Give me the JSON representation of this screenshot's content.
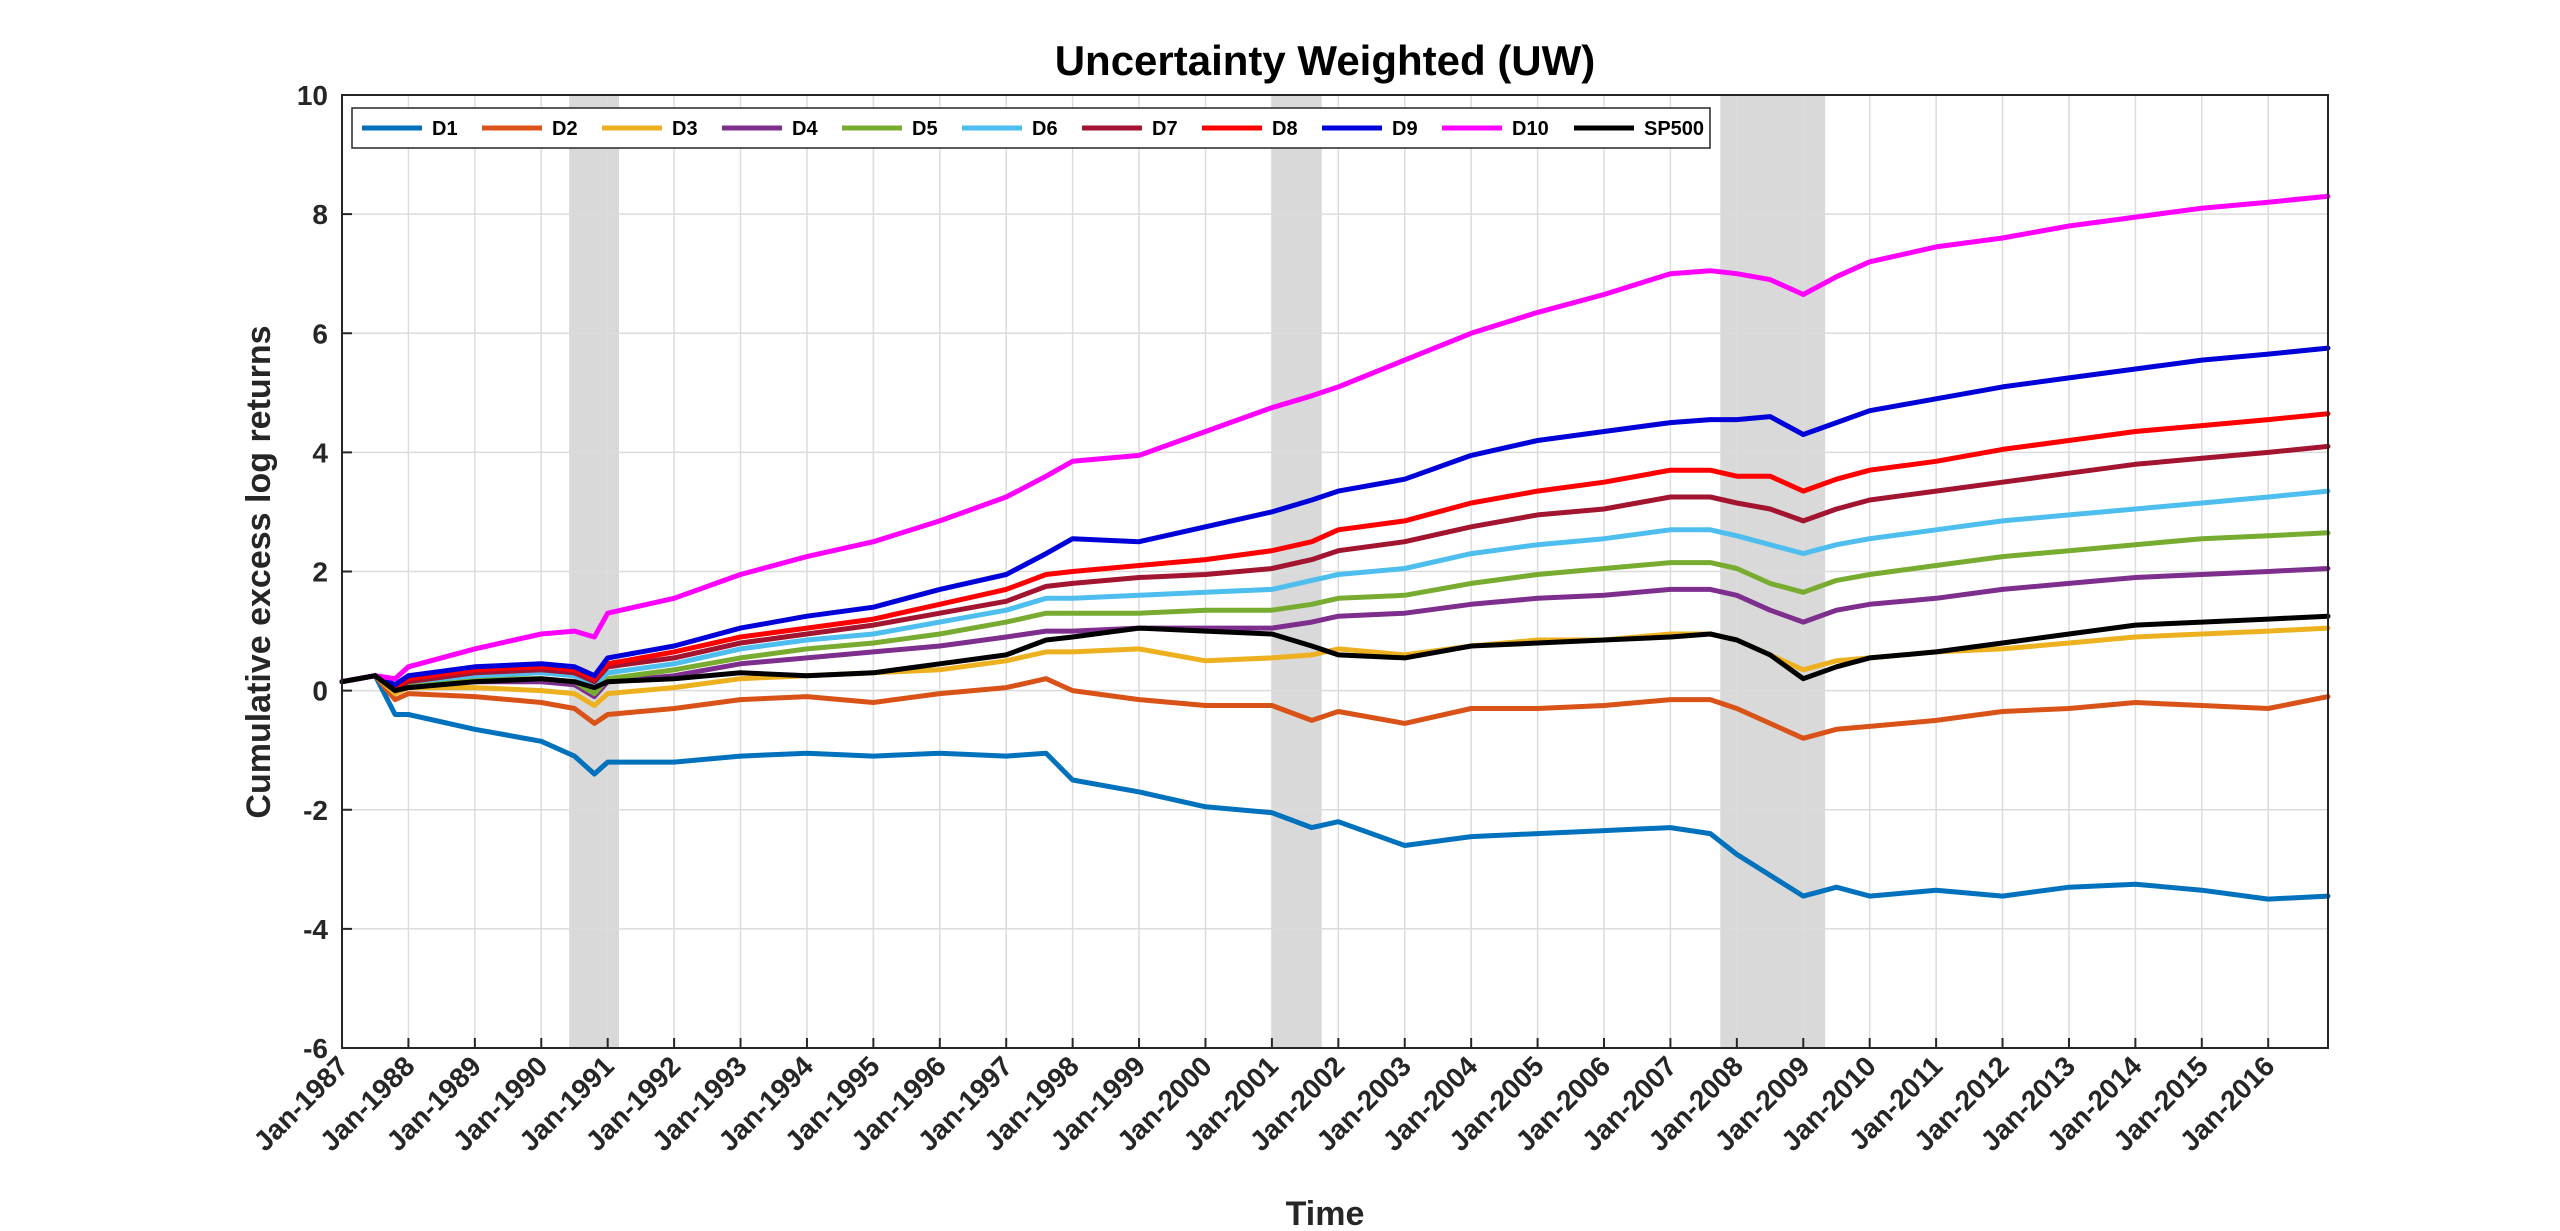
{
  "chart_data": {
    "type": "line",
    "title": "Uncertainty Weighted (UW)",
    "xlabel": "Time",
    "ylabel": "Cumulative excess log returns",
    "ylim": [
      -6,
      10
    ],
    "xlim": [
      1987.0,
      2016.9
    ],
    "yticks": [
      -6,
      -4,
      -2,
      0,
      2,
      4,
      6,
      8,
      10
    ],
    "xticks": [
      {
        "label": "Jan-1987",
        "x": 1987.0
      },
      {
        "label": "Jan-1988",
        "x": 1988.0
      },
      {
        "label": "Jan-1989",
        "x": 1989.0
      },
      {
        "label": "Jan-1990",
        "x": 1990.0
      },
      {
        "label": "Jan-1991",
        "x": 1991.0
      },
      {
        "label": "Jan-1992",
        "x": 1992.0
      },
      {
        "label": "Jan-1993",
        "x": 1993.0
      },
      {
        "label": "Jan-1994",
        "x": 1994.0
      },
      {
        "label": "Jan-1995",
        "x": 1995.0
      },
      {
        "label": "Jan-1996",
        "x": 1996.0
      },
      {
        "label": "Jan-1997",
        "x": 1997.0
      },
      {
        "label": "Jan-1998",
        "x": 1998.0
      },
      {
        "label": "Jan-1999",
        "x": 1999.0
      },
      {
        "label": "Jan-2000",
        "x": 2000.0
      },
      {
        "label": "Jan-2001",
        "x": 2001.0
      },
      {
        "label": "Jan-2002",
        "x": 2002.0
      },
      {
        "label": "Jan-2003",
        "x": 2003.0
      },
      {
        "label": "Jan-2004",
        "x": 2004.0
      },
      {
        "label": "Jan-2005",
        "x": 2005.0
      },
      {
        "label": "Jan-2006",
        "x": 2006.0
      },
      {
        "label": "Jan-2007",
        "x": 2007.0
      },
      {
        "label": "Jan-2008",
        "x": 2008.0
      },
      {
        "label": "Jan-2009",
        "x": 2009.0
      },
      {
        "label": "Jan-2010",
        "x": 2010.0
      },
      {
        "label": "Jan-2011",
        "x": 2011.0
      },
      {
        "label": "Jan-2012",
        "x": 2012.0
      },
      {
        "label": "Jan-2013",
        "x": 2013.0
      },
      {
        "label": "Jan-2014",
        "x": 2014.0
      },
      {
        "label": "Jan-2015",
        "x": 2015.0
      },
      {
        "label": "Jan-2016",
        "x": 2016.0
      }
    ],
    "grid": true,
    "legend_position": "top-left",
    "recession_shading": [
      {
        "start": 1990.42,
        "end": 1991.17
      },
      {
        "start": 2001.0,
        "end": 2001.75
      },
      {
        "start": 2007.75,
        "end": 2009.33
      }
    ],
    "shade_color": "#d9d9d9",
    "x": [
      1987.0,
      1987.5,
      1987.8,
      1988.0,
      1989.0,
      1990.0,
      1990.5,
      1990.8,
      1991.0,
      1992.0,
      1993.0,
      1994.0,
      1995.0,
      1996.0,
      1997.0,
      1997.6,
      1998.0,
      1999.0,
      2000.0,
      2001.0,
      2001.6,
      2002.0,
      2003.0,
      2004.0,
      2005.0,
      2006.0,
      2007.0,
      2007.6,
      2008.0,
      2008.5,
      2009.0,
      2009.5,
      2010.0,
      2011.0,
      2012.0,
      2013.0,
      2014.0,
      2015.0,
      2016.0,
      2016.9
    ],
    "series": [
      {
        "name": "D1",
        "color": "#0072bd",
        "values": [
          0.15,
          0.25,
          -0.4,
          -0.4,
          -0.65,
          -0.85,
          -1.1,
          -1.4,
          -1.2,
          -1.2,
          -1.1,
          -1.05,
          -1.1,
          -1.05,
          -1.1,
          -1.05,
          -1.5,
          -1.7,
          -1.95,
          -2.05,
          -2.3,
          -2.2,
          -2.6,
          -2.45,
          -2.4,
          -2.35,
          -2.3,
          -2.4,
          -2.75,
          -3.1,
          -3.45,
          -3.3,
          -3.45,
          -3.35,
          -3.45,
          -3.3,
          -3.25,
          -3.35,
          -3.5,
          -3.45
        ]
      },
      {
        "name": "D2",
        "color": "#d95319",
        "values": [
          0.15,
          0.25,
          -0.15,
          -0.05,
          -0.1,
          -0.2,
          -0.3,
          -0.55,
          -0.4,
          -0.3,
          -0.15,
          -0.1,
          -0.2,
          -0.05,
          0.05,
          0.2,
          0.0,
          -0.15,
          -0.25,
          -0.25,
          -0.5,
          -0.35,
          -0.55,
          -0.3,
          -0.3,
          -0.25,
          -0.15,
          -0.15,
          -0.3,
          -0.55,
          -0.8,
          -0.65,
          -0.6,
          -0.5,
          -0.35,
          -0.3,
          -0.2,
          -0.25,
          -0.3,
          -0.1
        ]
      },
      {
        "name": "D3",
        "color": "#edb120",
        "values": [
          0.15,
          0.25,
          -0.05,
          0.05,
          0.05,
          0.0,
          -0.05,
          -0.25,
          -0.05,
          0.05,
          0.2,
          0.25,
          0.3,
          0.35,
          0.5,
          0.65,
          0.65,
          0.7,
          0.5,
          0.55,
          0.6,
          0.7,
          0.6,
          0.75,
          0.85,
          0.85,
          0.95,
          0.95,
          0.85,
          0.6,
          0.35,
          0.5,
          0.55,
          0.65,
          0.7,
          0.8,
          0.9,
          0.95,
          1.0,
          1.05
        ]
      },
      {
        "name": "D4",
        "color": "#7e2f8e",
        "values": [
          0.15,
          0.25,
          0.0,
          0.1,
          0.15,
          0.15,
          0.1,
          -0.1,
          0.15,
          0.25,
          0.45,
          0.55,
          0.65,
          0.75,
          0.9,
          1.0,
          1.0,
          1.05,
          1.05,
          1.05,
          1.15,
          1.25,
          1.3,
          1.45,
          1.55,
          1.6,
          1.7,
          1.7,
          1.6,
          1.35,
          1.15,
          1.35,
          1.45,
          1.55,
          1.7,
          1.8,
          1.9,
          1.95,
          2.0,
          2.05
        ]
      },
      {
        "name": "D5",
        "color": "#77ac30",
        "values": [
          0.15,
          0.25,
          0.0,
          0.1,
          0.2,
          0.2,
          0.15,
          -0.05,
          0.2,
          0.35,
          0.55,
          0.7,
          0.8,
          0.95,
          1.15,
          1.3,
          1.3,
          1.3,
          1.35,
          1.35,
          1.45,
          1.55,
          1.6,
          1.8,
          1.95,
          2.05,
          2.15,
          2.15,
          2.05,
          1.8,
          1.65,
          1.85,
          1.95,
          2.1,
          2.25,
          2.35,
          2.45,
          2.55,
          2.6,
          2.65
        ]
      },
      {
        "name": "D6",
        "color": "#4dbeee",
        "values": [
          0.15,
          0.25,
          0.05,
          0.15,
          0.25,
          0.3,
          0.25,
          0.1,
          0.3,
          0.45,
          0.7,
          0.85,
          0.95,
          1.15,
          1.35,
          1.55,
          1.55,
          1.6,
          1.65,
          1.7,
          1.85,
          1.95,
          2.05,
          2.3,
          2.45,
          2.55,
          2.7,
          2.7,
          2.6,
          2.45,
          2.3,
          2.45,
          2.55,
          2.7,
          2.85,
          2.95,
          3.05,
          3.15,
          3.25,
          3.35
        ]
      },
      {
        "name": "D7",
        "color": "#a2142f",
        "values": [
          0.15,
          0.25,
          0.05,
          0.15,
          0.3,
          0.35,
          0.3,
          0.15,
          0.4,
          0.55,
          0.8,
          0.95,
          1.1,
          1.3,
          1.5,
          1.75,
          1.8,
          1.9,
          1.95,
          2.05,
          2.2,
          2.35,
          2.5,
          2.75,
          2.95,
          3.05,
          3.25,
          3.25,
          3.15,
          3.05,
          2.85,
          3.05,
          3.2,
          3.35,
          3.5,
          3.65,
          3.8,
          3.9,
          4.0,
          4.1
        ]
      },
      {
        "name": "D8",
        "color": "#ff0000",
        "values": [
          0.15,
          0.25,
          0.05,
          0.2,
          0.35,
          0.4,
          0.35,
          0.2,
          0.45,
          0.65,
          0.9,
          1.05,
          1.2,
          1.45,
          1.7,
          1.95,
          2.0,
          2.1,
          2.2,
          2.35,
          2.5,
          2.7,
          2.85,
          3.15,
          3.35,
          3.5,
          3.7,
          3.7,
          3.6,
          3.6,
          3.35,
          3.55,
          3.7,
          3.85,
          4.05,
          4.2,
          4.35,
          4.45,
          4.55,
          4.65
        ]
      },
      {
        "name": "D9",
        "color": "#0000d9",
        "values": [
          0.15,
          0.25,
          0.1,
          0.25,
          0.4,
          0.45,
          0.4,
          0.25,
          0.55,
          0.75,
          1.05,
          1.25,
          1.4,
          1.7,
          1.95,
          2.3,
          2.55,
          2.5,
          2.75,
          3.0,
          3.2,
          3.35,
          3.55,
          3.95,
          4.2,
          4.35,
          4.5,
          4.55,
          4.55,
          4.6,
          4.3,
          4.5,
          4.7,
          4.9,
          5.1,
          5.25,
          5.4,
          5.55,
          5.65,
          5.75
        ]
      },
      {
        "name": "D10",
        "color": "#ff00ff",
        "values": [
          0.15,
          0.25,
          0.2,
          0.4,
          0.7,
          0.95,
          1.0,
          0.9,
          1.3,
          1.55,
          1.95,
          2.25,
          2.5,
          2.85,
          3.25,
          3.6,
          3.85,
          3.95,
          4.35,
          4.75,
          4.95,
          5.1,
          5.55,
          6.0,
          6.35,
          6.65,
          7.0,
          7.05,
          7.0,
          6.9,
          6.65,
          6.95,
          7.2,
          7.45,
          7.6,
          7.8,
          7.95,
          8.1,
          8.2,
          8.3
        ]
      },
      {
        "name": "SP500",
        "color": "#000000",
        "values": [
          0.15,
          0.25,
          0.0,
          0.05,
          0.15,
          0.2,
          0.15,
          0.05,
          0.15,
          0.2,
          0.3,
          0.25,
          0.3,
          0.45,
          0.6,
          0.85,
          0.9,
          1.05,
          1.0,
          0.95,
          0.75,
          0.6,
          0.55,
          0.75,
          0.8,
          0.85,
          0.9,
          0.95,
          0.85,
          0.6,
          0.2,
          0.4,
          0.55,
          0.65,
          0.8,
          0.95,
          1.1,
          1.15,
          1.2,
          1.25
        ]
      }
    ]
  }
}
